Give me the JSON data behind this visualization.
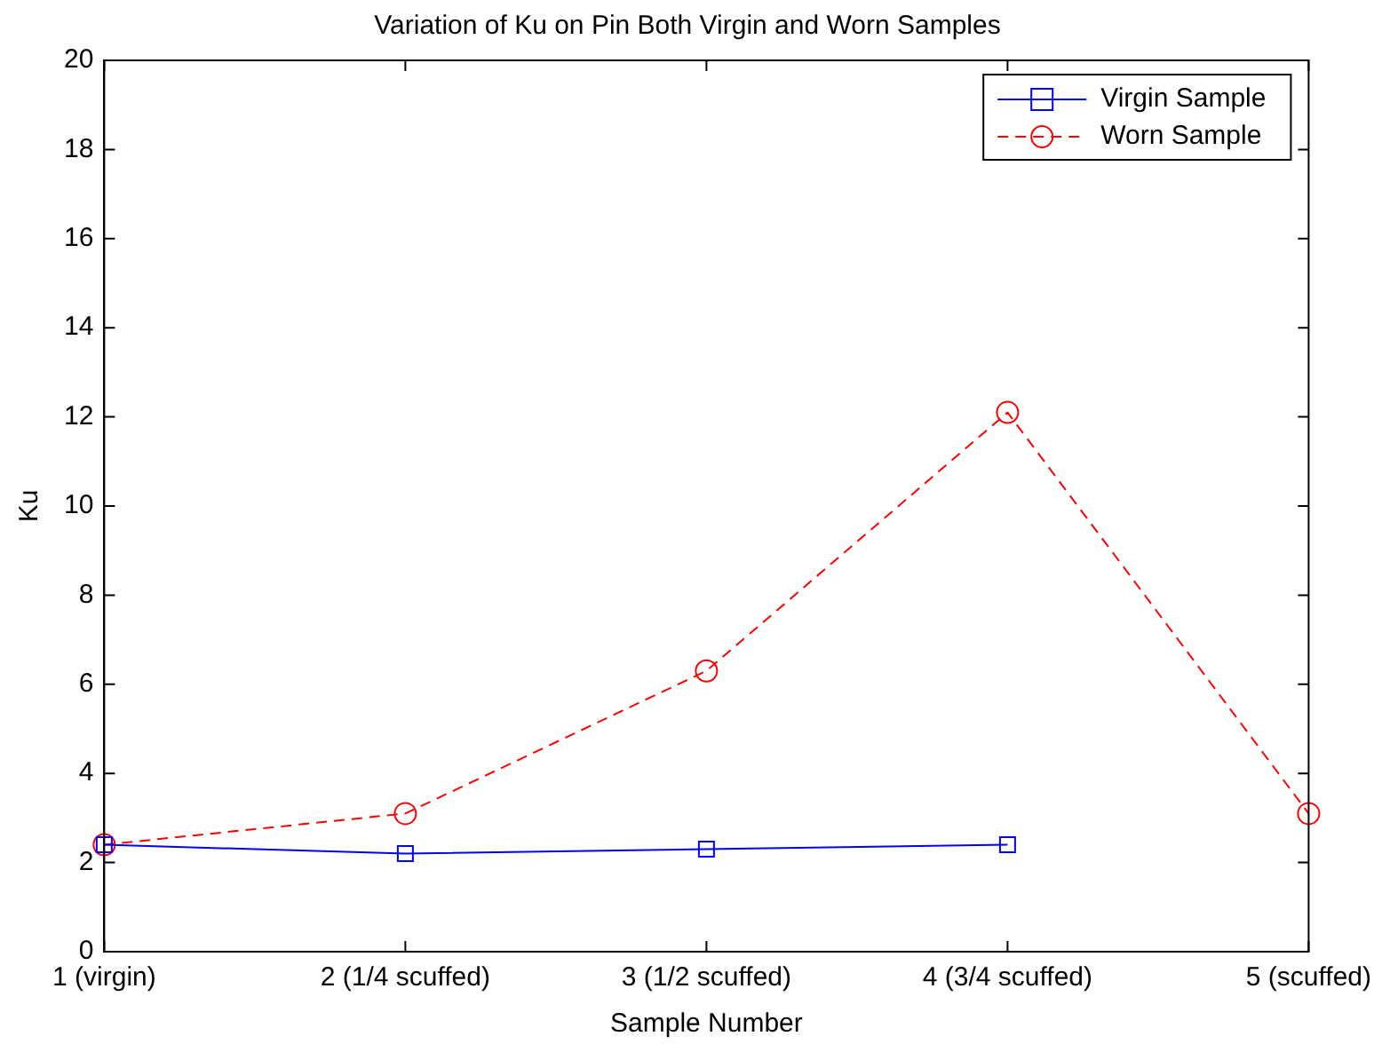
{
  "chart_data": {
    "type": "line",
    "title": "Variation of Ku on Pin Both Virgin and Worn Samples",
    "xlabel": "Sample Number",
    "ylabel": "Ku",
    "categories": [
      "1 (virgin)",
      "2 (1/4 scuffed)",
      "3 (1/2 scuffed)",
      "4 (3/4 scuffed)",
      "5 (scuffed)"
    ],
    "series": [
      {
        "name": "Virgin Sample",
        "color": "#0000ff",
        "values": [
          2.4,
          2.2,
          2.3,
          2.4,
          null
        ],
        "marker": "square",
        "line_style": "solid"
      },
      {
        "name": "Worn Sample",
        "color": "#ff0000",
        "values": [
          2.4,
          3.1,
          6.3,
          12.1,
          3.1
        ],
        "marker": "circle",
        "line_style": "dashed"
      }
    ],
    "ylim": [
      0,
      20
    ],
    "yticks": [
      0,
      2,
      4,
      6,
      8,
      10,
      12,
      14,
      16,
      18,
      20
    ],
    "grid": false,
    "legend": "top right"
  }
}
